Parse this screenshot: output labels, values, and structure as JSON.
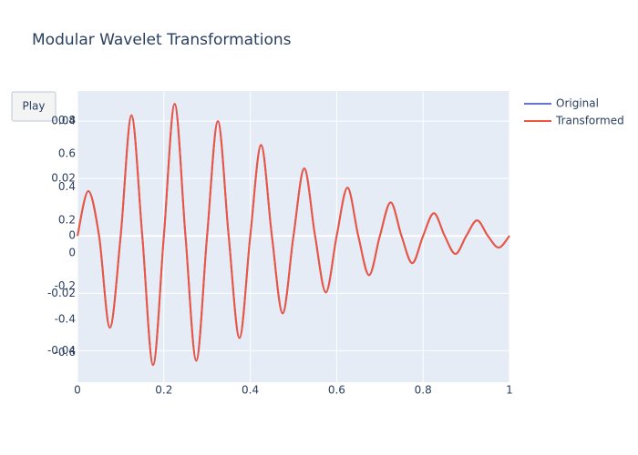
{
  "chart_data": {
    "type": "line",
    "title": "Modular Wavelet Transformations",
    "x": [
      0,
      0.025,
      0.05,
      0.075,
      0.1,
      0.125,
      0.15,
      0.175,
      0.2,
      0.225,
      0.25,
      0.275,
      0.3,
      0.325,
      0.35,
      0.375,
      0.4,
      0.425,
      0.45,
      0.475,
      0.5,
      0.525,
      0.55,
      0.575,
      0.6,
      0.625,
      0.65,
      0.675,
      0.7,
      0.725,
      0.75,
      0.775,
      0.8,
      0.825,
      0.85,
      0.875,
      0.9,
      0.925,
      0.95,
      0.975,
      1.0
    ],
    "series": [
      {
        "name": "Original",
        "color": "#636efa",
        "axis": "y2",
        "values": [
          0,
          0.0156,
          0,
          -0.032,
          0,
          0.042,
          0,
          -0.045,
          0,
          0.046,
          0,
          -0.0435,
          0,
          0.04,
          0,
          -0.0356,
          0,
          0.0317,
          0,
          -0.027,
          0,
          0.0235,
          0,
          -0.0197,
          0,
          0.0168,
          0,
          -0.0137,
          0,
          0.0117,
          0,
          -0.0095,
          0,
          0.0079,
          0,
          -0.0063,
          0,
          0.0054,
          0,
          -0.0041,
          0
        ]
      },
      {
        "name": "Transformed",
        "color": "#ef553b",
        "axis": "y2",
        "values": [
          0,
          0.0156,
          0,
          -0.032,
          0,
          0.042,
          0,
          -0.045,
          0,
          0.046,
          0,
          -0.0435,
          0,
          0.04,
          0,
          -0.0356,
          0,
          0.0317,
          0,
          -0.027,
          0,
          0.0235,
          0,
          -0.0197,
          0,
          0.0168,
          0,
          -0.0137,
          0,
          0.0117,
          0,
          -0.0095,
          0,
          0.0079,
          0,
          -0.0063,
          0,
          0.0054,
          0,
          -0.0041,
          0
        ]
      }
    ],
    "xlim": [
      0,
      1
    ],
    "xticks": [
      0,
      0.2,
      0.4,
      0.6,
      0.8,
      1
    ],
    "ylim": [
      -0.78,
      0.98
    ],
    "yticks": [
      -0.6,
      -0.4,
      -0.2,
      0,
      0.2,
      0.4,
      0.6,
      0.8
    ],
    "y2lim": [
      -0.051,
      0.0505
    ],
    "y2ticks": [
      -0.04,
      -0.02,
      0,
      0.02,
      0.04
    ],
    "grid": true
  },
  "button": "Play"
}
